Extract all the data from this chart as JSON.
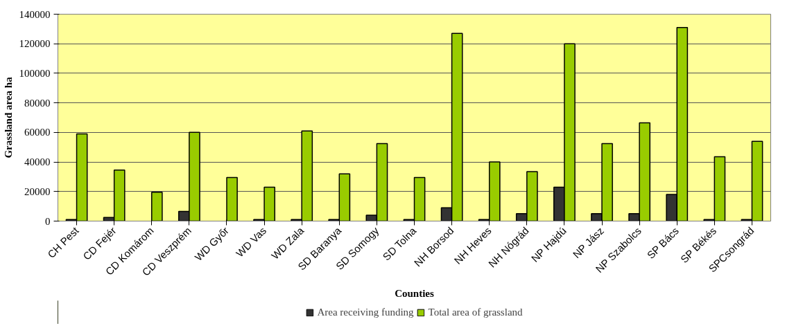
{
  "chart_data": {
    "type": "bar",
    "xlabel": "Counties",
    "ylabel": "Grassland area ha",
    "categories": [
      "CH Pest",
      "CD Fejér",
      "CD Komárom",
      "CD Veszprém",
      "WD Győr",
      "WD Vas",
      "WD Zala",
      "SD Baranya",
      "SD Somogy",
      "SD Tolna",
      "NH Borsod",
      "NH Heves",
      "NH Nógrád",
      "NP Hajdú",
      "NP Jász",
      "NP Szabolcs",
      "SP Bács",
      "SP Békés",
      "SPCsongrád"
    ],
    "series": [
      {
        "name": "Area receiving funding",
        "color": "#333333",
        "values": [
          1000,
          2500,
          null,
          6500,
          null,
          1000,
          1000,
          1000,
          4000,
          1000,
          9000,
          1000,
          5000,
          23000,
          5000,
          5000,
          18000,
          1000,
          1000
        ]
      },
      {
        "name": "Total area of grassland",
        "color": "#99cc00",
        "values": [
          59000,
          34500,
          19500,
          60000,
          29500,
          23000,
          61000,
          32000,
          52500,
          29500,
          127000,
          40000,
          33500,
          120000,
          52500,
          66500,
          131000,
          43500,
          54000
        ]
      }
    ],
    "ylim": [
      0,
      140000
    ],
    "yticks": [
      0,
      20000,
      40000,
      60000,
      80000,
      100000,
      120000,
      140000
    ],
    "grid": "y",
    "legend": "bottom"
  }
}
